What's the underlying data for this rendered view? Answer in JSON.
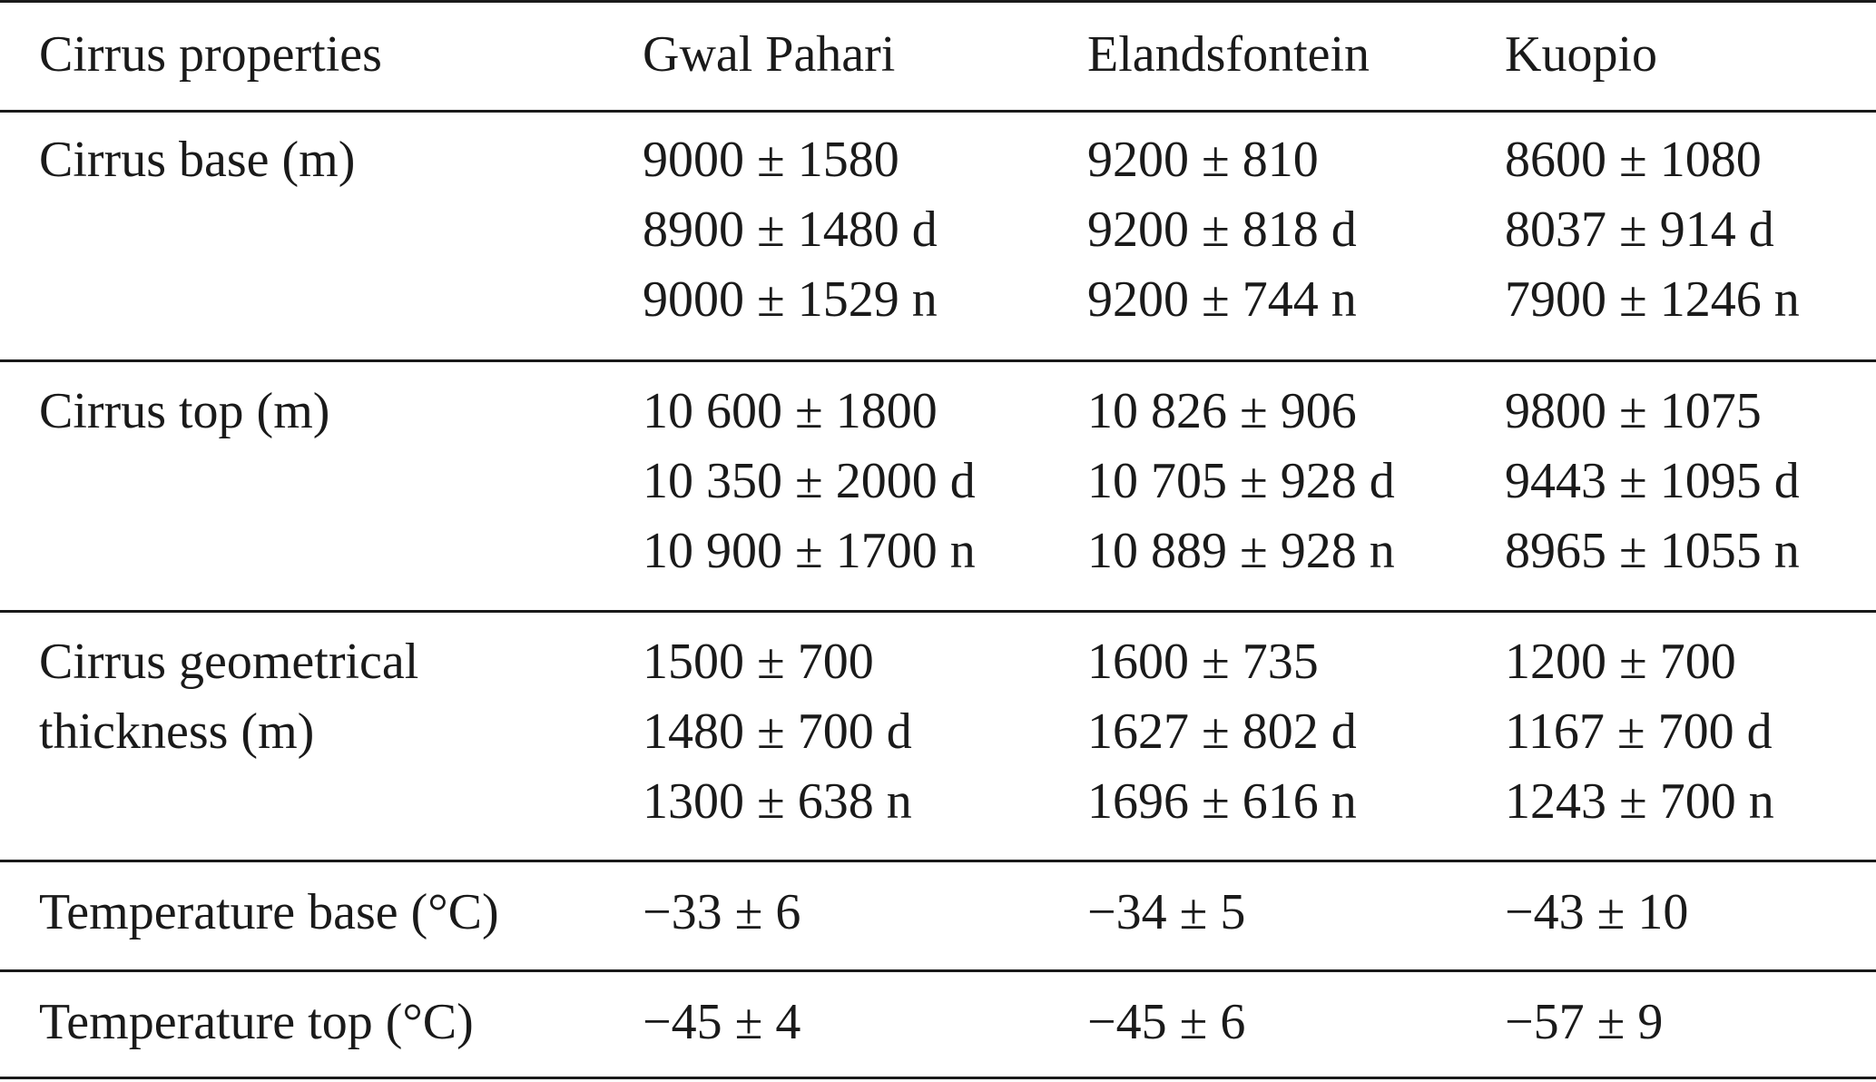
{
  "header": {
    "col0": "Cirrus properties",
    "col1": "Gwal Pahari",
    "col2": "Elandsfontein",
    "col3": "Kuopio"
  },
  "rows": [
    {
      "label": [
        "Cirrus base (m)"
      ],
      "gwal_pahari": [
        "9000 ± 1580",
        "8900 ± 1480 d",
        "9000 ± 1529 n"
      ],
      "elandsfontein": [
        "9200 ± 810",
        "9200 ± 818 d",
        "9200 ± 744 n"
      ],
      "kuopio": [
        "8600 ± 1080",
        "8037 ± 914 d",
        "7900 ± 1246 n"
      ]
    },
    {
      "label": [
        "Cirrus top (m)"
      ],
      "gwal_pahari": [
        "10 600 ± 1800",
        "10 350 ± 2000 d",
        "10 900 ± 1700 n"
      ],
      "elandsfontein": [
        "10 826 ± 906",
        "10 705 ± 928 d",
        "10 889 ± 928 n"
      ],
      "kuopio": [
        "9800 ± 1075",
        "9443 ± 1095 d",
        "8965 ± 1055 n"
      ]
    },
    {
      "label": [
        "Cirrus geometrical",
        "thickness (m)"
      ],
      "gwal_pahari": [
        "1500 ± 700",
        "1480 ± 700 d",
        "1300 ± 638 n"
      ],
      "elandsfontein": [
        "1600 ± 735",
        "1627 ± 802 d",
        "1696 ± 616 n"
      ],
      "kuopio": [
        "1200 ± 700",
        "1167 ± 700 d",
        "1243 ± 700 n"
      ]
    },
    {
      "label": [
        "Temperature base (°C)"
      ],
      "gwal_pahari": [
        "−33 ± 6"
      ],
      "elandsfontein": [
        "−34 ± 5"
      ],
      "kuopio": [
        "−43 ± 10"
      ]
    },
    {
      "label": [
        "Temperature top (°C)"
      ],
      "gwal_pahari": [
        "−45 ± 4"
      ],
      "elandsfontein": [
        "−45 ± 6"
      ],
      "kuopio": [
        "−57 ± 9"
      ]
    }
  ]
}
